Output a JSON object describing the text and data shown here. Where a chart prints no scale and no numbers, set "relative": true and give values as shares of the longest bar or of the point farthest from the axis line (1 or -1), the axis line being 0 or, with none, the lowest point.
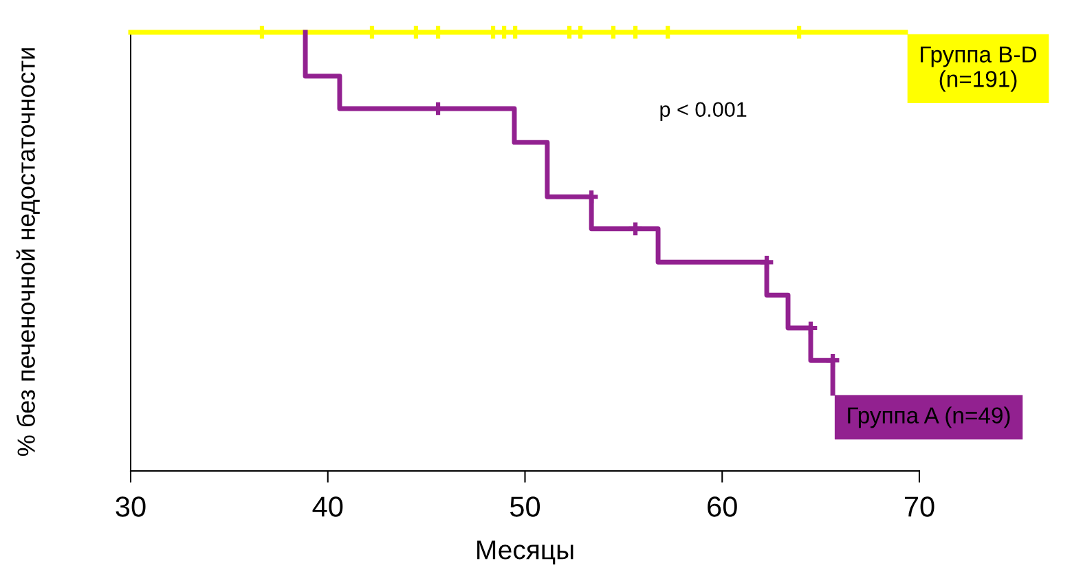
{
  "chart_data": {
    "type": "step",
    "relative": true,
    "xlabel": "Месяцы",
    "ylabel": "% без печеночной недостаточности",
    "xlim": [
      30,
      70
    ],
    "xticks": [
      30,
      40,
      50,
      60,
      70
    ],
    "grid": false,
    "legend": "right",
    "annotations": [
      "p < 0.001"
    ],
    "series": [
      {
        "name": "Группа B-D\n(n=191)",
        "color": "#ffff00",
        "x": [
          30,
          69.3
        ],
        "values": [
          1,
          1
        ]
      },
      {
        "type": "scatter",
        "marker": "cross",
        "color": "#ffff00",
        "x": [
          36.66,
          42.24,
          44.47,
          45.59,
          48.38,
          48.94,
          49.5,
          52.25,
          52.81,
          54.48,
          55.6,
          57.24,
          63.9
        ],
        "values": [
          1,
          1,
          1,
          1,
          1,
          1,
          1,
          1,
          1,
          1,
          1,
          1,
          1
        ]
      },
      {
        "name": "Группа A (n=49)",
        "color": "#922190",
        "x": [
          38.86,
          38.86,
          40.6,
          49.46,
          51.13,
          53.37,
          56.75,
          62.26,
          63.34,
          64.49,
          65.61
        ],
        "values": [
          1,
          0.9,
          0.826,
          0.749,
          0.625,
          0.552,
          0.476,
          0.401,
          0.326,
          0.252,
          0.177
        ]
      },
      {
        "type": "scatter",
        "marker": "cross",
        "color": "#922190",
        "x": [
          45.59,
          53.37,
          55.6,
          62.26,
          64.49,
          65.61
        ],
        "values": [
          0.826,
          0.625,
          0.552,
          0.476,
          0.326,
          0.252
        ]
      }
    ]
  }
}
